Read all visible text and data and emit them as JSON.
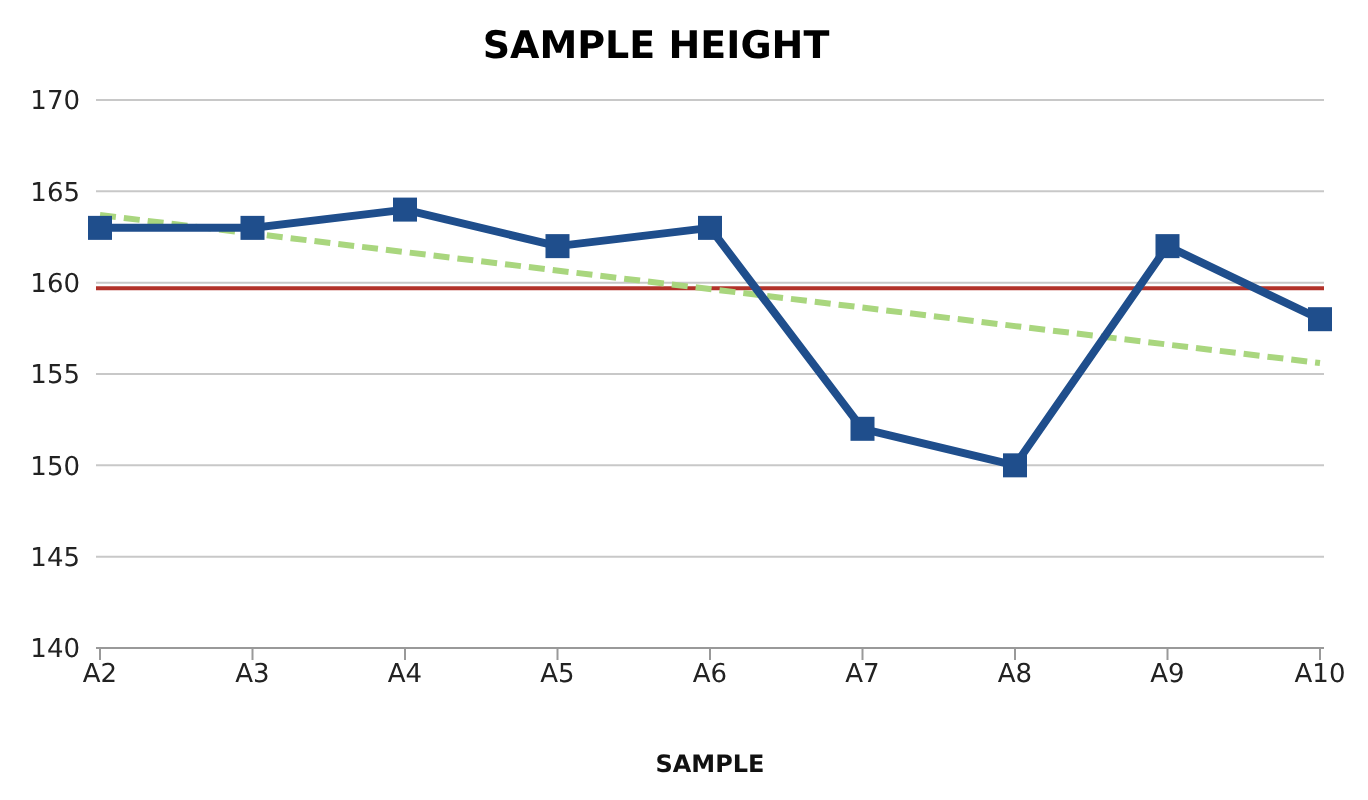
{
  "chart_data": {
    "type": "line",
    "title": "SAMPLE HEIGHT",
    "xlabel": "SAMPLE",
    "categories": [
      "A2",
      "A3",
      "A4",
      "A5",
      "A6",
      "A7",
      "A8",
      "A9",
      "A10"
    ],
    "series": [
      {
        "color": "#1f4e8c",
        "values": [
          163,
          163,
          164,
          162,
          163,
          152,
          150,
          162,
          158
        ],
        "marker": "square",
        "line_style": "solid"
      },
      {
        "type": "line",
        "color": "#a9d67e",
        "x": [
          "A2",
          "A10"
        ],
        "values": [
          163.7,
          155.6
        ],
        "marker": "none",
        "line_style": "dashed"
      }
    ],
    "ref_lines": [
      {
        "axis": "y",
        "value": 159.7,
        "color": "#b2322a",
        "line_style": "solid"
      }
    ],
    "ylim": [
      140,
      170
    ],
    "yticks": [
      140,
      145,
      150,
      155,
      160,
      165,
      170
    ],
    "grid": "y",
    "legend": false
  }
}
